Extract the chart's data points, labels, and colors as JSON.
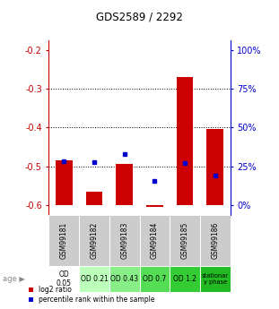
{
  "title": "GDS2589 / 2292",
  "samples": [
    "GSM99181",
    "GSM99182",
    "GSM99183",
    "GSM99184",
    "GSM99185",
    "GSM99186"
  ],
  "bar_bottom": -0.6,
  "bar_tops": [
    -0.485,
    -0.565,
    -0.495,
    -0.605,
    -0.27,
    -0.405
  ],
  "percentile_rank_y": [
    -0.488,
    -0.49,
    -0.468,
    -0.537,
    -0.492,
    -0.524
  ],
  "ylim": [
    -0.625,
    -0.175
  ],
  "yticks_left": [
    -0.2,
    -0.3,
    -0.4,
    -0.5,
    -0.6
  ],
  "yticks_right_vals": [
    100,
    75,
    50,
    25,
    0
  ],
  "yticks_right_pos": [
    -0.2,
    -0.3,
    -0.4,
    -0.5,
    -0.6
  ],
  "hlines": [
    -0.3,
    -0.4,
    -0.5
  ],
  "age_labels": [
    "OD\n0.05",
    "OD 0.21",
    "OD 0.43",
    "OD 0.7",
    "OD 1.2",
    "stationar\ny phase"
  ],
  "age_colors": [
    "#ffffff",
    "#bbffbb",
    "#88ee88",
    "#55dd55",
    "#33cc33",
    "#22bb22"
  ],
  "sample_bg_color": "#cccccc",
  "bar_color": "#cc0000",
  "dot_color": "#0000cc",
  "left_tick_color": "#cc0000",
  "right_tick_color": "#0000cc",
  "title_color": "#000000",
  "bar_width": 0.55
}
